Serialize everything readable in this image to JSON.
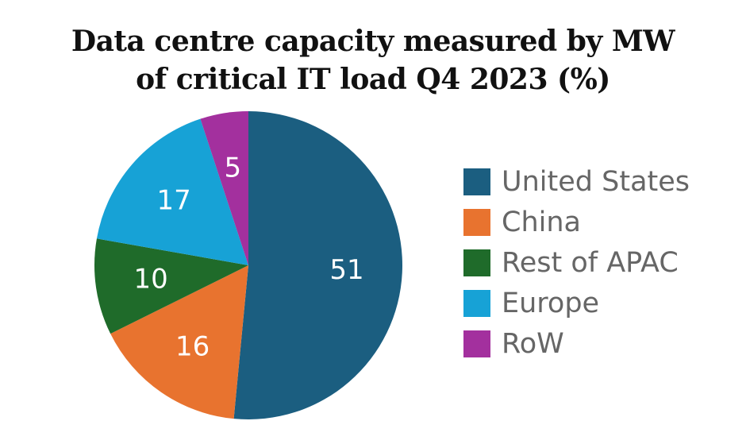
{
  "chart_data": {
    "type": "pie",
    "title": "Data centre capacity measured by MW of critical IT load Q4 2023 (%)",
    "title_lines": [
      "Data centre capacity measured by MW",
      "of critical IT load Q4 2023 (%)"
    ],
    "categories": [
      "United States",
      "China",
      "Rest of APAC",
      "Europe",
      "RoW"
    ],
    "values": [
      51,
      16,
      10,
      17,
      5
    ],
    "colors": [
      "#1b5e80",
      "#e8732f",
      "#1f6b2a",
      "#17a2d6",
      "#a3309e"
    ],
    "legend_position": "right",
    "start_angle": "top",
    "direction": "clockwise"
  }
}
